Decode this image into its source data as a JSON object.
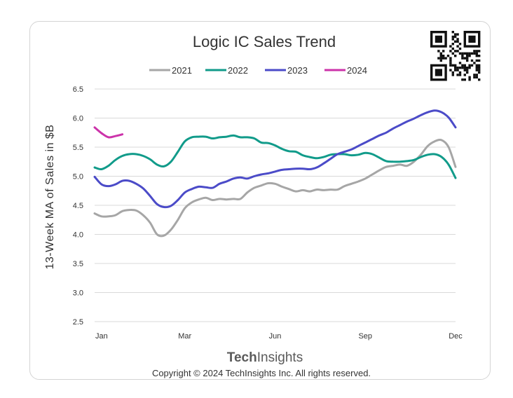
{
  "chart_data": {
    "type": "line",
    "title": "Logic IC Sales Trend",
    "ylabel": "13-Week MA of Sales in $B",
    "xlabel": "",
    "ylim": [
      2.5,
      6.5
    ],
    "yticks": [
      "6.5",
      "6.0",
      "5.5",
      "5.0",
      "4.5",
      "4.0",
      "3.5",
      "3.0",
      "2.5"
    ],
    "xlim": [
      1,
      52
    ],
    "xticks": [
      {
        "label": "Jan",
        "week": 1
      },
      {
        "label": "Mar",
        "week": 13
      },
      {
        "label": "Jun",
        "week": 26
      },
      {
        "label": "Sep",
        "week": 39
      },
      {
        "label": "Dec",
        "week": 52
      }
    ],
    "grid": true,
    "legend_position": "top",
    "series": [
      {
        "name": "2021",
        "color": "#a6a6a6",
        "weeks": [
          0,
          1,
          2,
          3,
          4,
          5,
          6,
          7,
          8,
          9,
          10,
          11,
          12,
          13,
          14,
          15,
          16,
          17,
          18,
          19,
          20,
          21,
          22,
          23,
          24,
          25,
          26,
          27,
          28,
          29,
          30,
          31,
          32,
          33,
          34,
          35,
          36,
          37,
          38,
          39,
          40,
          41,
          42,
          43,
          44,
          45,
          46,
          47,
          48,
          49,
          50,
          51,
          52
        ],
        "values": [
          4.36,
          4.31,
          4.31,
          4.33,
          4.4,
          4.42,
          4.41,
          4.33,
          4.2,
          4.0,
          3.98,
          4.08,
          4.25,
          4.45,
          4.55,
          4.6,
          4.63,
          4.59,
          4.61,
          4.6,
          4.61,
          4.61,
          4.72,
          4.8,
          4.84,
          4.88,
          4.87,
          4.82,
          4.78,
          4.74,
          4.76,
          4.74,
          4.77,
          4.76,
          4.77,
          4.77,
          4.83,
          4.87,
          4.91,
          4.96,
          5.03,
          5.1,
          5.16,
          5.18,
          5.2,
          5.18,
          5.25,
          5.37,
          5.52,
          5.6,
          5.62,
          5.5,
          5.16
        ]
      },
      {
        "name": "2022",
        "color": "#119b8a",
        "weeks": [
          0,
          1,
          2,
          3,
          4,
          5,
          6,
          7,
          8,
          9,
          10,
          11,
          12,
          13,
          14,
          15,
          16,
          17,
          18,
          19,
          20,
          21,
          22,
          23,
          24,
          25,
          26,
          27,
          28,
          29,
          30,
          31,
          32,
          33,
          34,
          35,
          36,
          37,
          38,
          39,
          40,
          41,
          42,
          43,
          44,
          45,
          46,
          47,
          48,
          49,
          50,
          51,
          52
        ],
        "values": [
          5.15,
          5.12,
          5.18,
          5.28,
          5.35,
          5.38,
          5.38,
          5.35,
          5.29,
          5.2,
          5.17,
          5.25,
          5.42,
          5.6,
          5.67,
          5.68,
          5.68,
          5.65,
          5.67,
          5.68,
          5.7,
          5.67,
          5.67,
          5.65,
          5.58,
          5.57,
          5.53,
          5.47,
          5.43,
          5.42,
          5.36,
          5.33,
          5.31,
          5.33,
          5.37,
          5.38,
          5.38,
          5.36,
          5.37,
          5.4,
          5.38,
          5.32,
          5.26,
          5.25,
          5.25,
          5.26,
          5.28,
          5.33,
          5.37,
          5.38,
          5.33,
          5.2,
          4.97
        ]
      },
      {
        "name": "2023",
        "color": "#4b4bc8",
        "weeks": [
          0,
          1,
          2,
          3,
          4,
          5,
          6,
          7,
          8,
          9,
          10,
          11,
          12,
          13,
          14,
          15,
          16,
          17,
          18,
          19,
          20,
          21,
          22,
          23,
          24,
          25,
          26,
          27,
          28,
          29,
          30,
          31,
          32,
          33,
          34,
          35,
          36,
          37,
          38,
          39,
          40,
          41,
          42,
          43,
          44,
          45,
          46,
          47,
          48,
          49,
          50,
          51,
          52
        ],
        "values": [
          4.99,
          4.86,
          4.83,
          4.86,
          4.92,
          4.92,
          4.87,
          4.79,
          4.66,
          4.52,
          4.47,
          4.49,
          4.59,
          4.72,
          4.78,
          4.82,
          4.81,
          4.8,
          4.87,
          4.91,
          4.96,
          4.98,
          4.96,
          5.0,
          5.03,
          5.05,
          5.08,
          5.11,
          5.12,
          5.13,
          5.13,
          5.12,
          5.15,
          5.22,
          5.3,
          5.38,
          5.42,
          5.46,
          5.52,
          5.58,
          5.64,
          5.7,
          5.75,
          5.82,
          5.88,
          5.94,
          5.99,
          6.05,
          6.1,
          6.13,
          6.1,
          6.01,
          5.84
        ]
      },
      {
        "name": "2024",
        "color": "#cc33aa",
        "weeks": [
          0,
          1,
          2,
          3,
          4
        ],
        "values": [
          5.84,
          5.74,
          5.67,
          5.69,
          5.72
        ]
      }
    ]
  },
  "footer": {
    "brand_tech": "Tech",
    "brand_insights": "Insights",
    "copyright": "Copyright © 2024 TechInsights Inc.  All rights reserved."
  },
  "qr_code": {
    "icon": "qr-code-icon"
  }
}
